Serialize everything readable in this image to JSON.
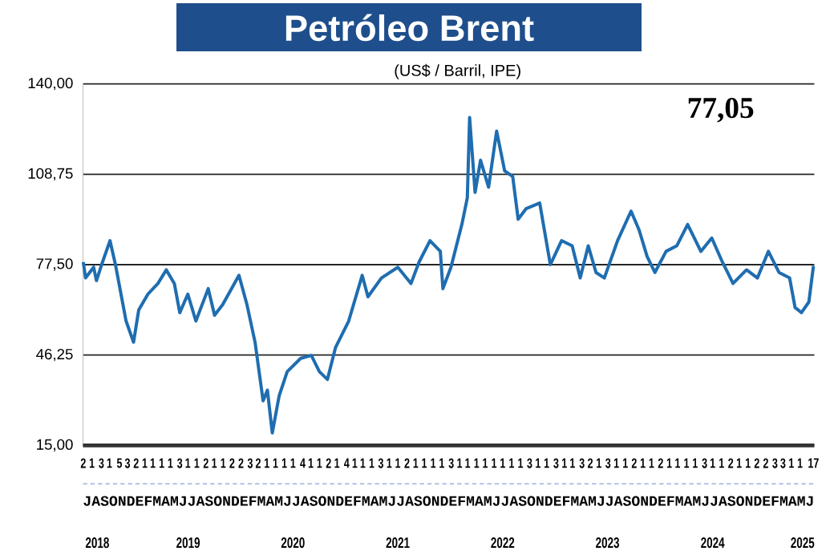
{
  "chart_data": {
    "type": "line",
    "title": "Petróleo Brent",
    "subtitle": "(US$ / Barril, IPE)",
    "annotations": [
      "77,05"
    ],
    "color": "#1f6db0",
    "grid": "y",
    "ylim": [
      15,
      140
    ],
    "yticks": [
      {
        "value": 15,
        "label": "15,00"
      },
      {
        "value": 46.25,
        "label": "46,25"
      },
      {
        "value": 77.5,
        "label": "77,50"
      },
      {
        "value": 108.75,
        "label": "108,75"
      },
      {
        "value": 140,
        "label": "140,00"
      }
    ],
    "xlim": [
      "2018-07-01",
      "2025-06-20"
    ],
    "xticks": [
      {
        "value": "2018-07-02",
        "label": "2"
      },
      {
        "value": "2018-08-01",
        "label": "1"
      },
      {
        "value": "2018-09-03",
        "label": "3"
      },
      {
        "value": "2018-10-01",
        "label": "1"
      },
      {
        "value": "2018-11-05",
        "label": "5"
      },
      {
        "value": "2018-12-03",
        "label": "3"
      },
      {
        "value": "2019-01-02",
        "label": "2"
      },
      {
        "value": "2019-02-01",
        "label": "1"
      },
      {
        "value": "2019-03-01",
        "label": "1"
      },
      {
        "value": "2019-04-01",
        "label": "1"
      },
      {
        "value": "2019-05-01",
        "label": "1"
      },
      {
        "value": "2019-06-03",
        "label": "3"
      },
      {
        "value": "2019-07-01",
        "label": "1"
      },
      {
        "value": "2019-08-01",
        "label": "1"
      },
      {
        "value": "2019-09-02",
        "label": "2"
      },
      {
        "value": "2019-10-01",
        "label": "1"
      },
      {
        "value": "2019-11-01",
        "label": "1"
      },
      {
        "value": "2019-12-02",
        "label": "2"
      },
      {
        "value": "2020-01-02",
        "label": "2"
      },
      {
        "value": "2020-02-03",
        "label": "3"
      },
      {
        "value": "2020-03-02",
        "label": "2"
      },
      {
        "value": "2020-04-01",
        "label": "1"
      },
      {
        "value": "2020-05-01",
        "label": "1"
      },
      {
        "value": "2020-06-01",
        "label": "1"
      },
      {
        "value": "2020-07-01",
        "label": "1"
      },
      {
        "value": "2020-08-04",
        "label": "4"
      },
      {
        "value": "2020-09-01",
        "label": "1"
      },
      {
        "value": "2020-10-01",
        "label": "1"
      },
      {
        "value": "2020-11-02",
        "label": "2"
      },
      {
        "value": "2020-12-01",
        "label": "1"
      },
      {
        "value": "2021-01-04",
        "label": "4"
      },
      {
        "value": "2021-02-01",
        "label": "1"
      },
      {
        "value": "2021-03-01",
        "label": "1"
      },
      {
        "value": "2021-04-01",
        "label": "1"
      },
      {
        "value": "2021-05-03",
        "label": "3"
      },
      {
        "value": "2021-06-01",
        "label": "1"
      },
      {
        "value": "2021-07-01",
        "label": "1"
      },
      {
        "value": "2021-08-02",
        "label": "2"
      },
      {
        "value": "2021-09-01",
        "label": "1"
      },
      {
        "value": "2021-10-01",
        "label": "1"
      },
      {
        "value": "2021-11-01",
        "label": "1"
      },
      {
        "value": "2021-12-01",
        "label": "1"
      },
      {
        "value": "2022-01-03",
        "label": "3"
      },
      {
        "value": "2022-02-01",
        "label": "1"
      },
      {
        "value": "2022-03-01",
        "label": "1"
      },
      {
        "value": "2022-04-01",
        "label": "1"
      },
      {
        "value": "2022-05-01",
        "label": "1"
      },
      {
        "value": "2022-06-01",
        "label": "1"
      },
      {
        "value": "2022-07-01",
        "label": "1"
      },
      {
        "value": "2022-08-01",
        "label": "1"
      },
      {
        "value": "2022-09-01",
        "label": "1"
      },
      {
        "value": "2022-10-03",
        "label": "3"
      },
      {
        "value": "2022-11-01",
        "label": "1"
      },
      {
        "value": "2022-12-01",
        "label": "1"
      },
      {
        "value": "2023-01-03",
        "label": "3"
      },
      {
        "value": "2023-02-01",
        "label": "1"
      },
      {
        "value": "2023-03-01",
        "label": "1"
      },
      {
        "value": "2023-04-03",
        "label": "3"
      },
      {
        "value": "2023-05-02",
        "label": "2"
      },
      {
        "value": "2023-06-01",
        "label": "1"
      },
      {
        "value": "2023-07-03",
        "label": "3"
      },
      {
        "value": "2023-08-01",
        "label": "1"
      },
      {
        "value": "2023-09-01",
        "label": "1"
      },
      {
        "value": "2023-10-02",
        "label": "2"
      },
      {
        "value": "2023-11-01",
        "label": "1"
      },
      {
        "value": "2023-12-01",
        "label": "1"
      },
      {
        "value": "2024-01-02",
        "label": "2"
      },
      {
        "value": "2024-02-01",
        "label": "1"
      },
      {
        "value": "2024-03-01",
        "label": "1"
      },
      {
        "value": "2024-04-01",
        "label": "1"
      },
      {
        "value": "2024-05-01",
        "label": "1"
      },
      {
        "value": "2024-06-03",
        "label": "3"
      },
      {
        "value": "2024-07-01",
        "label": "1"
      },
      {
        "value": "2024-08-01",
        "label": "1"
      },
      {
        "value": "2024-09-02",
        "label": "2"
      },
      {
        "value": "2024-10-01",
        "label": "1"
      },
      {
        "value": "2024-11-01",
        "label": "1"
      },
      {
        "value": "2024-12-02",
        "label": "2"
      },
      {
        "value": "2025-01-02",
        "label": "2"
      },
      {
        "value": "2025-02-03",
        "label": "3"
      },
      {
        "value": "2025-03-03",
        "label": "3"
      },
      {
        "value": "2025-04-01",
        "label": "1"
      },
      {
        "value": "2025-05-01",
        "label": "1"
      },
      {
        "value": "2025-06-17",
        "label": "17"
      }
    ],
    "xlabel": "JASONDEFMAMJJASONDEFMAMJJASONDEFMAMJJASONDEFMAMJJASONDEFMAMJJASONDEFMAMJJASONDEFMAMJ",
    "x2lim": [
      "2018-07-01",
      "2025-06-20"
    ],
    "x2ticks": [
      {
        "value": "2018-08-20",
        "label": "2018"
      },
      {
        "value": "2019-07-02",
        "label": "2019"
      },
      {
        "value": "2020-07-01",
        "label": "2020"
      },
      {
        "value": "2021-07-01",
        "label": "2021"
      },
      {
        "value": "2022-07-01",
        "label": "2022"
      },
      {
        "value": "2023-07-01",
        "label": "2023"
      },
      {
        "value": "2024-07-01",
        "label": "2024"
      },
      {
        "value": "2025-05-10",
        "label": "2025"
      }
    ],
    "x": [
      "2018-07-02",
      "2018-07-10",
      "2018-08-07",
      "2018-08-17",
      "2018-09-04",
      "2018-10-03",
      "2018-10-22",
      "2018-11-28",
      "2018-12-24",
      "2019-01-11",
      "2019-02-12",
      "2019-03-19",
      "2019-04-17",
      "2019-05-15",
      "2019-06-03",
      "2019-07-01",
      "2019-07-29",
      "2019-09-10",
      "2019-10-02",
      "2019-10-30",
      "2019-12-26",
      "2020-01-23",
      "2020-02-20",
      "2020-03-19",
      "2020-04-03",
      "2020-04-20",
      "2020-05-14",
      "2020-06-11",
      "2020-07-28",
      "2020-09-03",
      "2020-10-01",
      "2020-10-29",
      "2020-11-26",
      "2021-01-11",
      "2021-02-27",
      "2021-03-19",
      "2021-05-05",
      "2021-07-01",
      "2021-08-16",
      "2021-09-13",
      "2021-10-21",
      "2021-11-26",
      "2021-12-05",
      "2022-01-02",
      "2022-02-09",
      "2022-02-28",
      "2022-03-08",
      "2022-03-27",
      "2022-04-15",
      "2022-05-13",
      "2022-06-10",
      "2022-07-08",
      "2022-08-05",
      "2022-08-24",
      "2022-09-21",
      "2022-11-07",
      "2022-12-14",
      "2023-01-22",
      "2023-02-28",
      "2023-03-28",
      "2023-04-25",
      "2023-05-22",
      "2023-06-20",
      "2023-08-05",
      "2023-09-21",
      "2023-10-19",
      "2023-11-16",
      "2023-12-13",
      "2024-01-21",
      "2024-02-27",
      "2024-04-05",
      "2024-05-21",
      "2024-06-28",
      "2024-08-04",
      "2024-09-10",
      "2024-10-27",
      "2024-12-04",
      "2025-01-11",
      "2025-02-17",
      "2025-03-26",
      "2025-04-14",
      "2025-05-06",
      "2025-06-01",
      "2025-06-17"
    ],
    "values": [
      78.4,
      72.9,
      76.6,
      72,
      77.5,
      85.8,
      77.5,
      58,
      50.7,
      61.8,
      67.3,
      71,
      75.7,
      71,
      60.9,
      67.3,
      58,
      69.2,
      60,
      63.6,
      73.8,
      63.6,
      50.7,
      30.4,
      34.1,
      19.3,
      32.2,
      40.5,
      45.1,
      46.1,
      40.5,
      37.8,
      48.8,
      58,
      73.8,
      66.4,
      72.9,
      76.6,
      71,
      78.4,
      85.8,
      82.1,
      69.2,
      76.6,
      91.4,
      100.6,
      128.4,
      102.5,
      113.6,
      104.3,
      123.7,
      109.9,
      108,
      93.2,
      96.9,
      98.8,
      77.5,
      85.8,
      84,
      72.9,
      84,
      74.8,
      72.9,
      85.8,
      96,
      89.5,
      80.3,
      74.8,
      82.1,
      84,
      91.4,
      82.1,
      86.7,
      78.4,
      71,
      75.7,
      72.9,
      82.1,
      74.8,
      72.9,
      62.7,
      60.9,
      64.6,
      77.1
    ]
  }
}
